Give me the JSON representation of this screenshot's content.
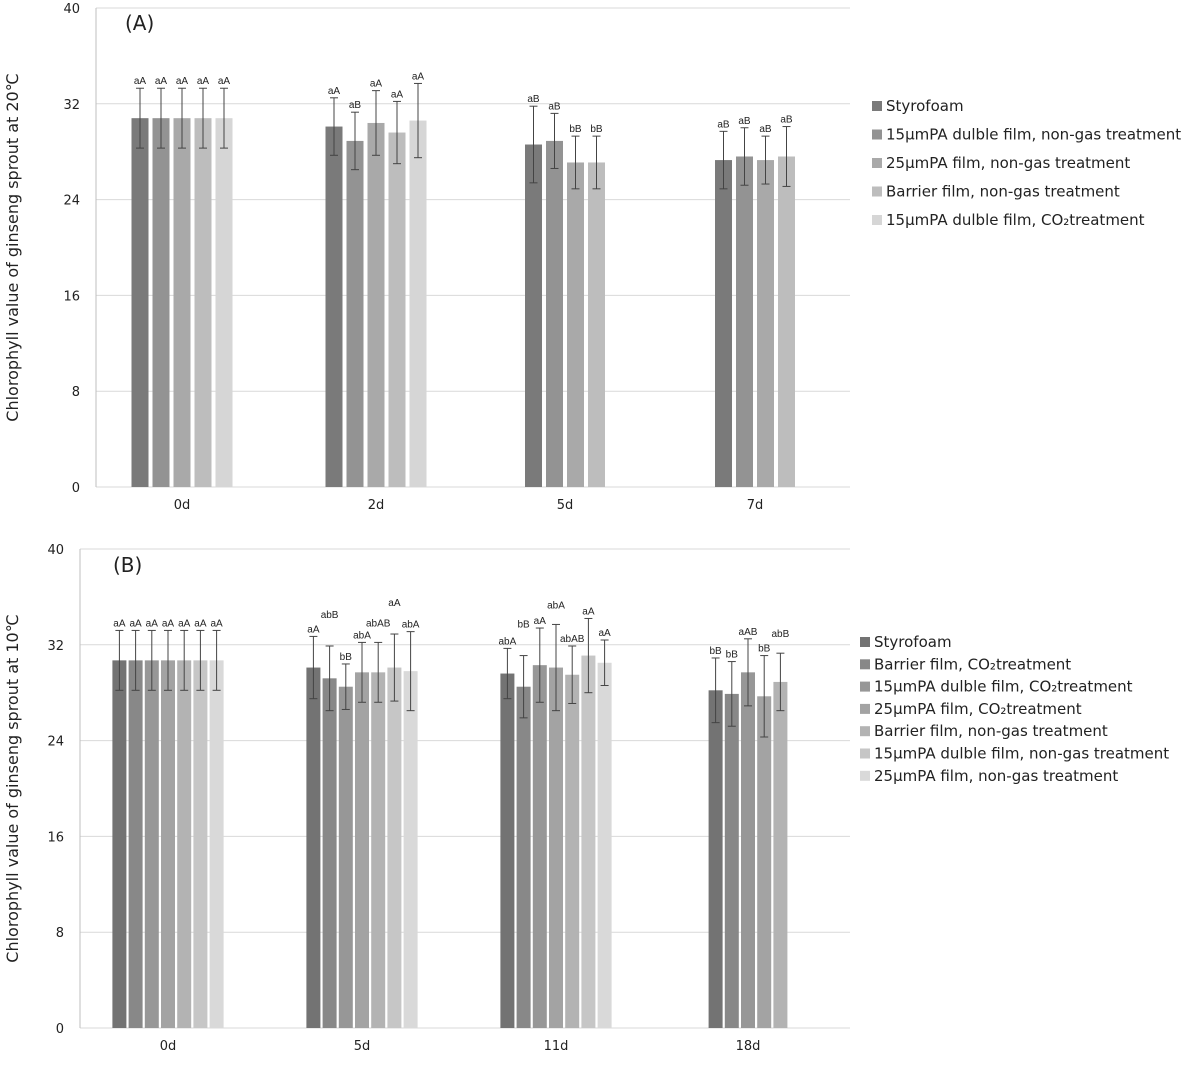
{
  "chart_data": [
    {
      "type": "bar",
      "panel_label": "(A)",
      "ylabel": "Chlorophyll value of ginseng sprout at 20℃",
      "xlabel": "",
      "ylim": [
        0,
        40
      ],
      "yticks": [
        0,
        8,
        16,
        24,
        32,
        40
      ],
      "grid": true,
      "legend_position": "right",
      "categories": [
        "0d",
        "2d",
        "5d",
        "7d"
      ],
      "series": [
        {
          "name": "Styrofoam",
          "color": "#7a7a7a",
          "values": [
            30.8,
            30.1,
            28.6,
            27.3
          ],
          "errors": [
            2.5,
            2.4,
            3.2,
            2.4
          ],
          "labels": [
            "aA",
            "aA",
            "aB",
            "aB"
          ]
        },
        {
          "name": "15μmPA dulble film, non-gas treatment",
          "color": "#939393",
          "values": [
            30.8,
            28.9,
            28.9,
            27.6
          ],
          "errors": [
            2.5,
            2.4,
            2.3,
            2.4
          ],
          "labels": [
            "aA",
            "aB",
            "aB",
            "aB"
          ]
        },
        {
          "name": "25μmPA film, non-gas treatment",
          "color": "#a9a9a9",
          "values": [
            30.8,
            30.4,
            27.1,
            27.3
          ],
          "errors": [
            2.5,
            2.7,
            2.2,
            2.0
          ],
          "labels": [
            "aA",
            "aA",
            "bB",
            "aB"
          ]
        },
        {
          "name": "Barrier film, non-gas treatment",
          "color": "#bdbdbd",
          "values": [
            30.8,
            29.6,
            27.1,
            27.6
          ],
          "errors": [
            2.5,
            2.6,
            2.2,
            2.5
          ],
          "labels": [
            "aA",
            "aA",
            "bB",
            "aB"
          ]
        },
        {
          "name": "15μmPA dulble film, CO₂treatment",
          "color": "#d6d6d6",
          "values": [
            30.8,
            30.6,
            null,
            null
          ],
          "errors": [
            2.5,
            3.1,
            null,
            null
          ],
          "labels": [
            "aA",
            "aA",
            null,
            null
          ]
        }
      ]
    },
    {
      "type": "bar",
      "panel_label": "(B)",
      "ylabel": "Chlorophyll value of ginseng sprout at 10℃",
      "xlabel": "",
      "ylim": [
        0,
        40
      ],
      "yticks": [
        0,
        8,
        16,
        24,
        32,
        40
      ],
      "grid": true,
      "legend_position": "right",
      "categories": [
        "0d",
        "5d",
        "11d",
        "18d"
      ],
      "series": [
        {
          "name": "Styrofoam",
          "color": "#737373",
          "values": [
            30.7,
            30.1,
            29.6,
            28.2
          ],
          "errors": [
            2.5,
            2.6,
            2.1,
            2.7
          ],
          "labels": [
            "aA",
            "aA",
            "abA",
            "bB"
          ]
        },
        {
          "name": "Barrier  film, CO₂treatment",
          "color": "#888888",
          "values": [
            30.7,
            29.2,
            28.5,
            27.9
          ],
          "errors": [
            2.5,
            2.7,
            2.6,
            2.7
          ],
          "labels": [
            "aA",
            "abB",
            "bB",
            "bB"
          ]
        },
        {
          "name": "15μmPA dulble film, CO₂treatment",
          "color": "#979797",
          "values": [
            30.7,
            28.5,
            30.3,
            29.7
          ],
          "errors": [
            2.5,
            1.9,
            3.1,
            2.8
          ],
          "labels": [
            "aA",
            "bB",
            "aA",
            "aAB"
          ]
        },
        {
          "name": "25μmPA film, CO₂treatment",
          "color": "#a3a3a3",
          "values": [
            30.7,
            29.7,
            30.1,
            27.7
          ],
          "errors": [
            2.5,
            2.5,
            3.6,
            3.4
          ],
          "labels": [
            "aA",
            "abA",
            "abA",
            "bB"
          ]
        },
        {
          "name": "Barrier film, non-gas treatment",
          "color": "#b3b3b3",
          "values": [
            30.7,
            29.7,
            29.5,
            28.9
          ],
          "errors": [
            2.5,
            2.5,
            2.4,
            2.4
          ],
          "labels": [
            "aA",
            "abAB",
            "abAB",
            "abB"
          ]
        },
        {
          "name": "15μmPA dulble film, non-gas treatment",
          "color": "#c6c6c6",
          "values": [
            30.7,
            30.1,
            31.1,
            null
          ],
          "errors": [
            2.5,
            2.8,
            3.1,
            null
          ],
          "labels": [
            "aA",
            "aA",
            "aA",
            null
          ]
        },
        {
          "name": "25μmPA film, non-gas treatment",
          "color": "#d9d9d9",
          "values": [
            30.7,
            29.8,
            30.5,
            null
          ],
          "errors": [
            2.5,
            3.3,
            1.9,
            null
          ],
          "labels": [
            "aA",
            "abA",
            "aA",
            null
          ]
        }
      ]
    }
  ]
}
